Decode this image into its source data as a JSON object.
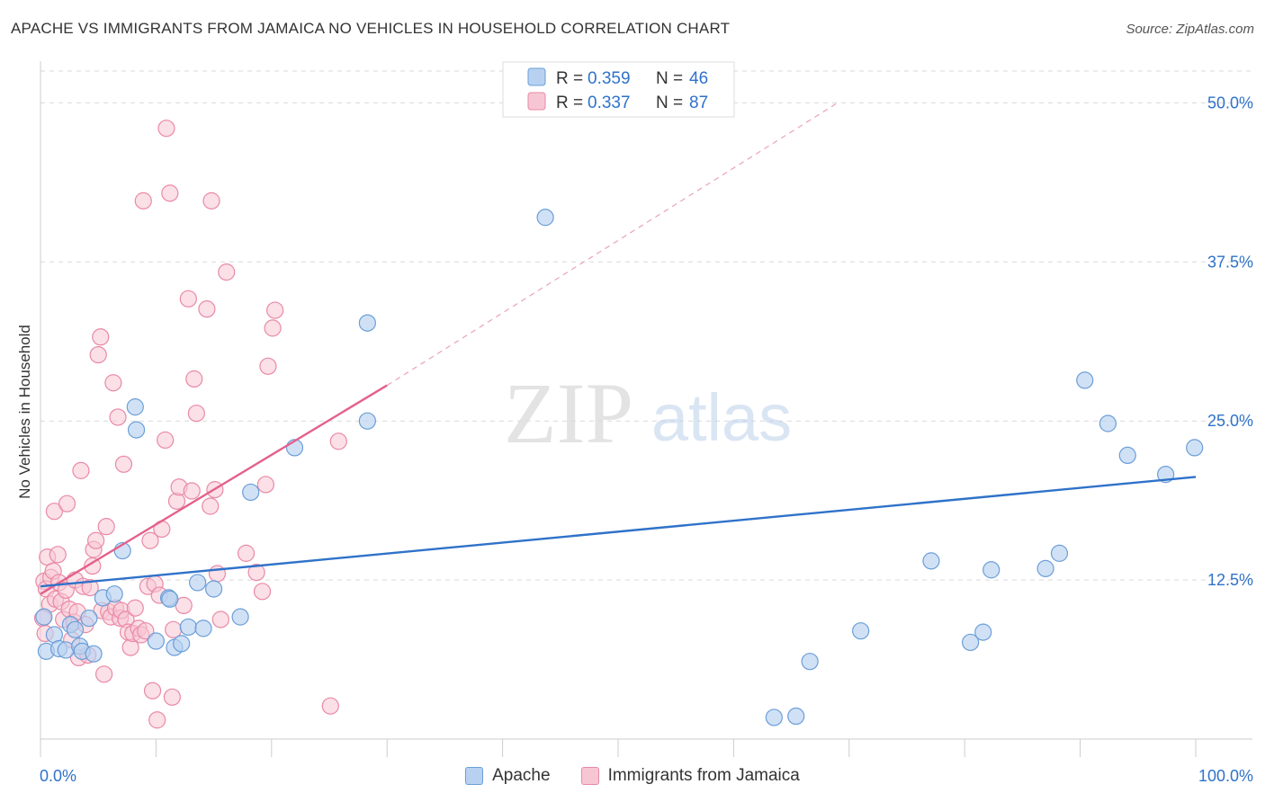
{
  "title": "APACHE VS IMMIGRANTS FROM JAMAICA NO VEHICLES IN HOUSEHOLD CORRELATION CHART",
  "source": "Source: ZipAtlas.com",
  "watermark": {
    "zip": "ZIP",
    "atlas": "atlas"
  },
  "colors": {
    "blue_fill": "#b8d1f0",
    "blue_stroke": "#6a9ed8",
    "blue_line": "#2f72c9",
    "pink_fill": "#f7c6d4",
    "pink_stroke": "#e989a6",
    "pink_line": "#e4608b",
    "value_text": "#2f72c9",
    "grid": "#d9d9d9"
  },
  "legend": {
    "rows": [
      {
        "r_label": "R =",
        "r_value": "0.359",
        "n_label": "N =",
        "n_value": "46"
      },
      {
        "r_label": "R =",
        "r_value": "0.337",
        "n_label": "N =",
        "n_value": "87"
      }
    ]
  },
  "chart_data": {
    "type": "scatter",
    "title": "APACHE VS IMMIGRANTS FROM JAMAICA NO VEHICLES IN HOUSEHOLD CORRELATION CHART",
    "xlabel": "",
    "ylabel": "No Vehicles in Household",
    "xlim": [
      0,
      100
    ],
    "ylim": [
      0,
      52.5
    ],
    "x_tick_labels": [
      "0.0%",
      "100.0%"
    ],
    "y_ticks": [
      12.5,
      25.0,
      37.5,
      50.0
    ],
    "y_tick_labels": [
      "12.5%",
      "25.0%",
      "37.5%",
      "50.0%"
    ],
    "grid": true,
    "legend_position": "top-center",
    "series": [
      {
        "name": "Apache",
        "color": "#6a9ed8",
        "r": 0.359,
        "n": 46,
        "trend": {
          "x": [
            0,
            100
          ],
          "y": [
            12.0,
            20.6
          ]
        },
        "points": [
          [
            0.3,
            9.6
          ],
          [
            0.5,
            6.9
          ],
          [
            1.2,
            8.2
          ],
          [
            1.6,
            7.1
          ],
          [
            2.2,
            7.0
          ],
          [
            2.6,
            9.0
          ],
          [
            3.0,
            8.6
          ],
          [
            3.4,
            7.3
          ],
          [
            3.6,
            6.9
          ],
          [
            4.2,
            9.5
          ],
          [
            4.6,
            6.7
          ],
          [
            5.4,
            11.1
          ],
          [
            6.4,
            11.4
          ],
          [
            7.1,
            14.8
          ],
          [
            8.2,
            26.1
          ],
          [
            8.3,
            24.3
          ],
          [
            10.0,
            7.7
          ],
          [
            11.1,
            11.1
          ],
          [
            11.2,
            11.0
          ],
          [
            11.6,
            7.2
          ],
          [
            12.2,
            7.5
          ],
          [
            12.8,
            8.8
          ],
          [
            13.6,
            12.3
          ],
          [
            14.1,
            8.7
          ],
          [
            15.0,
            11.8
          ],
          [
            17.3,
            9.6
          ],
          [
            18.2,
            19.4
          ],
          [
            22.0,
            22.9
          ],
          [
            28.3,
            32.7
          ],
          [
            28.3,
            25.0
          ],
          [
            43.7,
            41.0
          ],
          [
            63.5,
            1.7
          ],
          [
            65.4,
            1.8
          ],
          [
            66.6,
            6.1
          ],
          [
            71.0,
            8.5
          ],
          [
            77.1,
            14.0
          ],
          [
            80.5,
            7.6
          ],
          [
            81.6,
            8.4
          ],
          [
            82.3,
            13.3
          ],
          [
            87.0,
            13.4
          ],
          [
            88.2,
            14.6
          ],
          [
            90.4,
            28.2
          ],
          [
            92.4,
            24.8
          ],
          [
            94.1,
            22.3
          ],
          [
            97.4,
            20.8
          ],
          [
            99.9,
            22.9
          ]
        ]
      },
      {
        "name": "Immigrants from Jamaica",
        "color": "#e989a6",
        "r": 0.337,
        "n": 87,
        "trend": {
          "x": [
            0,
            30
          ],
          "y": [
            11.4,
            27.8
          ]
        },
        "trend_extended": {
          "x": [
            30,
            69
          ],
          "y": [
            27.8,
            50.0
          ]
        },
        "points": [
          [
            0.2,
            9.5
          ],
          [
            0.3,
            12.4
          ],
          [
            0.4,
            8.3
          ],
          [
            0.5,
            11.8
          ],
          [
            0.6,
            14.3
          ],
          [
            0.8,
            10.6
          ],
          [
            0.9,
            12.7
          ],
          [
            1.1,
            13.2
          ],
          [
            1.2,
            17.9
          ],
          [
            1.3,
            11.0
          ],
          [
            1.5,
            14.5
          ],
          [
            1.6,
            12.3
          ],
          [
            1.8,
            10.8
          ],
          [
            2.0,
            9.4
          ],
          [
            2.2,
            11.7
          ],
          [
            2.3,
            18.5
          ],
          [
            2.5,
            10.2
          ],
          [
            2.7,
            7.8
          ],
          [
            2.9,
            9.2
          ],
          [
            3.0,
            12.5
          ],
          [
            3.2,
            10.0
          ],
          [
            3.3,
            6.4
          ],
          [
            3.5,
            21.1
          ],
          [
            3.7,
            12.0
          ],
          [
            3.9,
            9.0
          ],
          [
            4.1,
            6.6
          ],
          [
            4.3,
            11.9
          ],
          [
            4.5,
            13.6
          ],
          [
            4.6,
            14.9
          ],
          [
            4.8,
            15.6
          ],
          [
            5.0,
            30.2
          ],
          [
            5.2,
            31.6
          ],
          [
            5.3,
            10.1
          ],
          [
            5.5,
            5.1
          ],
          [
            5.7,
            16.7
          ],
          [
            5.9,
            10.0
          ],
          [
            6.1,
            9.6
          ],
          [
            6.3,
            28.0
          ],
          [
            6.5,
            10.3
          ],
          [
            6.7,
            25.3
          ],
          [
            6.9,
            9.5
          ],
          [
            7.0,
            10.1
          ],
          [
            7.2,
            21.6
          ],
          [
            7.4,
            9.4
          ],
          [
            7.6,
            8.4
          ],
          [
            7.8,
            7.2
          ],
          [
            8.0,
            8.3
          ],
          [
            8.2,
            10.3
          ],
          [
            8.5,
            8.7
          ],
          [
            8.7,
            8.2
          ],
          [
            8.9,
            42.3
          ],
          [
            9.1,
            8.5
          ],
          [
            9.3,
            12.0
          ],
          [
            9.5,
            15.6
          ],
          [
            9.7,
            3.8
          ],
          [
            9.9,
            12.2
          ],
          [
            10.1,
            1.5
          ],
          [
            10.3,
            11.3
          ],
          [
            10.5,
            16.5
          ],
          [
            10.8,
            23.5
          ],
          [
            11.2,
            42.9
          ],
          [
            11.4,
            3.3
          ],
          [
            11.8,
            18.7
          ],
          [
            11.5,
            8.6
          ],
          [
            12.0,
            19.8
          ],
          [
            12.4,
            10.5
          ],
          [
            12.8,
            34.6
          ],
          [
            13.1,
            19.5
          ],
          [
            13.3,
            28.3
          ],
          [
            13.5,
            25.6
          ],
          [
            14.4,
            33.8
          ],
          [
            14.7,
            18.3
          ],
          [
            14.8,
            42.3
          ],
          [
            15.1,
            19.6
          ],
          [
            15.3,
            13.0
          ],
          [
            15.6,
            9.4
          ],
          [
            16.1,
            36.7
          ],
          [
            17.8,
            14.6
          ],
          [
            18.7,
            13.1
          ],
          [
            19.2,
            11.6
          ],
          [
            19.5,
            20.0
          ],
          [
            19.7,
            29.3
          ],
          [
            20.1,
            32.3
          ],
          [
            20.3,
            33.7
          ],
          [
            25.1,
            2.6
          ],
          [
            25.8,
            23.4
          ],
          [
            10.9,
            48.0
          ]
        ]
      }
    ]
  },
  "bottom_legend": [
    {
      "label": "Apache"
    },
    {
      "label": "Immigrants from Jamaica"
    }
  ]
}
